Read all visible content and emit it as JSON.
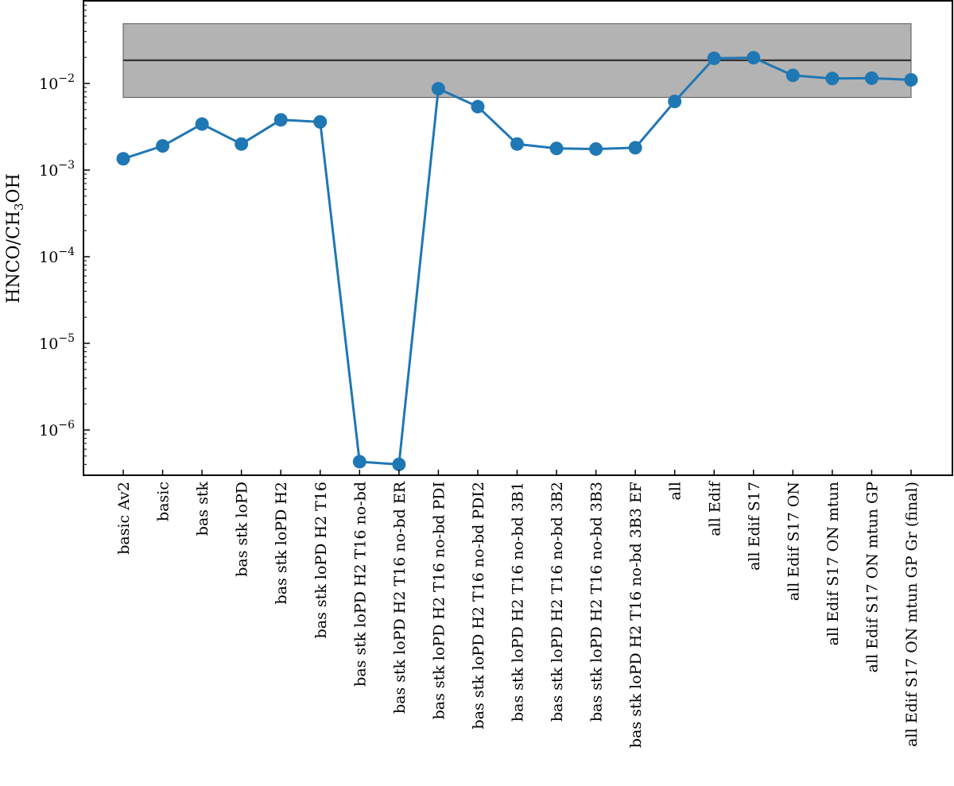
{
  "chart_data": {
    "type": "line",
    "title": "",
    "xlabel": "",
    "ylabel": "HNCO/CH",
    "ylabel_sub": "3",
    "ylabel_tail": "OH",
    "yscale": "log",
    "ylim": [
      3e-07,
      0.09
    ],
    "yticks": [
      {
        "value": 1e-06,
        "base": "10",
        "exp": "−6"
      },
      {
        "value": 1e-05,
        "base": "10",
        "exp": "−5"
      },
      {
        "value": 0.0001,
        "base": "10",
        "exp": "−4"
      },
      {
        "value": 0.001,
        "base": "10",
        "exp": "−3"
      },
      {
        "value": 0.01,
        "base": "10",
        "exp": "−2"
      }
    ],
    "categories": [
      "basic Av2",
      "basic",
      "bas stk",
      "bas stk loPD",
      "bas stk loPD H2",
      "bas stk loPD H2 T16",
      "bas stk loPD H2 T16 no-bd",
      "bas stk loPD H2 T16 no-bd ER",
      "bas stk loPD H2 T16 no-bd PDI",
      "bas stk loPD H2 T16 no-bd PDI2",
      "bas stk loPD H2 T16 no-bd 3B1",
      "bas stk loPD H2 T16 no-bd 3B2",
      "bas stk loPD H2 T16 no-bd 3B3",
      "bas stk loPD H2 T16 no-bd 3B3 EF",
      "all",
      "all Edif",
      "all Edif S17",
      "all Edif S17 ON",
      "all Edif S17 ON mtun",
      "all Edif S17 ON mtun GP",
      "all Edif S17 ON mtun GP Gr (final)"
    ],
    "series": [
      {
        "values": [
          0.00135,
          0.0019,
          0.0034,
          0.002,
          0.0038,
          0.0036,
          4.3e-07,
          4e-07,
          0.0087,
          0.0054,
          0.002,
          0.00178,
          0.00175,
          0.00181,
          0.0062,
          0.0195,
          0.0198,
          0.0124,
          0.0114,
          0.0115,
          0.011
        ],
        "color": "#1f77b4"
      }
    ],
    "reference": {
      "value": 0.0185,
      "band": [
        0.0069,
        0.049
      ],
      "line_color": "#333333",
      "band_color": "#b3b3b3"
    },
    "grid": false,
    "legend": "none"
  }
}
